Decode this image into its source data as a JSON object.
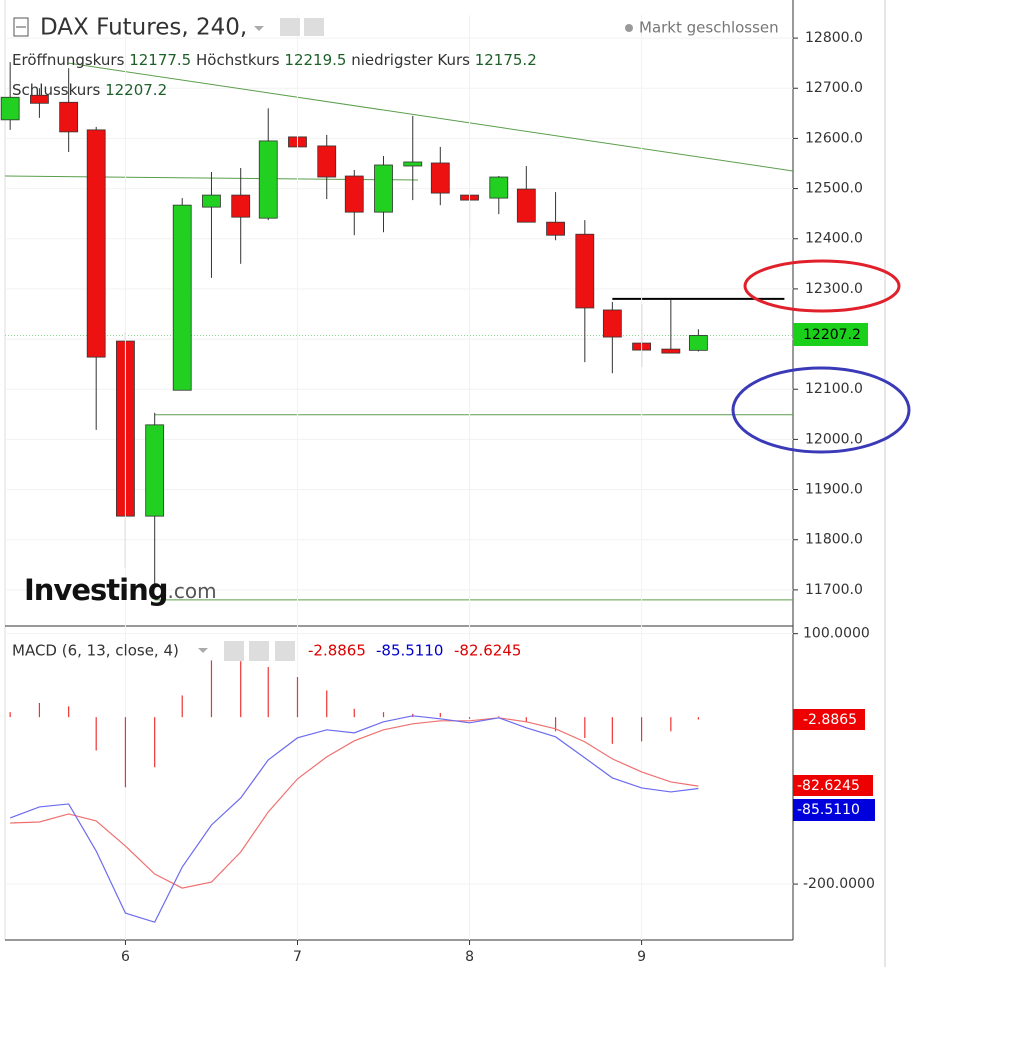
{
  "chart_data": [
    {
      "type": "candlestick",
      "title": "DAX Futures, 240,",
      "status": "Markt geschlossen",
      "ohlc_labels": {
        "open": "Eröffnungskurs",
        "high": "Höchstkurs",
        "low": "niedrigster Kurs",
        "close": "Schlusskurs"
      },
      "logo": [
        "Investing",
        ".com"
      ],
      "x": [
        5.33,
        5.5,
        5.67,
        5.83,
        6,
        6.17,
        6.33,
        6.5,
        6.67,
        6.83,
        7,
        7.17,
        7.33,
        7.5,
        7.67,
        7.83,
        8,
        8.17,
        8.33,
        8.5,
        8.67,
        8.83,
        9,
        9.17,
        9.33
      ],
      "open": [
        12637,
        12686,
        12672,
        12617,
        12196,
        11847,
        12098,
        12463,
        12487,
        12441,
        12603,
        12585,
        12525,
        12453,
        12545,
        12551,
        12487,
        12481,
        12499,
        12433,
        12409,
        12258,
        12192,
        12180,
        12177.5
      ],
      "high": [
        12752,
        12700,
        12740,
        12623,
        12214,
        12053,
        12481,
        12533,
        12541,
        12660,
        12660,
        12607,
        12537,
        12565,
        12645,
        12583,
        12497,
        12525,
        12545,
        12493,
        12437,
        12274,
        12270,
        12278,
        12219.5
      ],
      "low": [
        12617,
        12641,
        12573,
        12019,
        11744,
        11710,
        12098,
        12322,
        12350,
        12437,
        12583,
        12479,
        12407,
        12413,
        12477,
        12467,
        12383,
        12449,
        12433,
        12397,
        12154,
        12132,
        12144,
        12172,
        12175.2
      ],
      "close": [
        12682,
        12670,
        12613,
        12164,
        11847,
        12029,
        12467,
        12487,
        12443,
        12595,
        12583,
        12523,
        12453,
        12547,
        12553,
        12491,
        12477,
        12523,
        12433,
        12407,
        12262,
        12204,
        12178,
        12172,
        12207.2
      ],
      "up_color": "#22d022",
      "down_color": "#ee1111",
      "xlim": [
        5.3,
        9.88
      ],
      "ylim": [
        11630,
        12846
      ],
      "yticks": [
        {
          "value": 11700,
          "label": "11700.0"
        },
        {
          "value": 11800,
          "label": "11800.0"
        },
        {
          "value": 11900,
          "label": "11900.0"
        },
        {
          "value": 12000,
          "label": "12000.0"
        },
        {
          "value": 12100,
          "label": "12100.0"
        },
        {
          "value": 12200,
          "label": "12200.0"
        },
        {
          "value": 12300,
          "label": "12300.0"
        },
        {
          "value": 12400,
          "label": "12400.0"
        },
        {
          "value": 12500,
          "label": "12500.0"
        },
        {
          "value": 12600,
          "label": "12600.0"
        },
        {
          "value": 12700,
          "label": "12700.0"
        },
        {
          "value": 12800,
          "label": "12800.0"
        }
      ],
      "grid": true,
      "drawings": [
        {
          "x": [
            5.67,
            9.88
          ],
          "y": [
            12750,
            12535
          ],
          "color": "#5a9e4b"
        },
        {
          "x": [
            5.3,
            7.7
          ],
          "y": [
            12525,
            12517
          ],
          "color": "#5a9e4b"
        },
        {
          "x": [
            6.17,
            9.88
          ],
          "y": [
            12049,
            12049
          ],
          "color": "#5a9e4b"
        },
        {
          "x": [
            6.17,
            9.88
          ],
          "y": [
            11680,
            11680
          ],
          "color": "#5a9e4b"
        },
        {
          "x": [
            8.83,
            9.83
          ],
          "y": [
            12280,
            12280
          ],
          "color": "#000000"
        }
      ]
    },
    {
      "type": "macd",
      "title": "MACD (6, 13, close, 4)",
      "x": [
        5.33,
        5.5,
        5.67,
        5.83,
        6,
        6.17,
        6.33,
        6.5,
        6.67,
        6.83,
        7,
        7.17,
        7.33,
        7.5,
        7.67,
        7.83,
        8,
        8.17,
        8.33,
        8.5,
        8.67,
        8.83,
        9,
        9.17,
        9.33
      ],
      "histogram": {
        "color": "#ee3333",
        "values": [
          6,
          17,
          13,
          -40,
          -84,
          -60,
          26,
          68,
          67,
          60,
          48,
          32,
          10,
          6,
          4,
          5,
          -2,
          1,
          -6,
          -17,
          -25,
          -32,
          -29,
          -17,
          -2.8865
        ]
      },
      "macd": {
        "color": "#6b6bf0",
        "values": [
          -120.8,
          -107.6,
          -104,
          -160.4,
          -234.8,
          -245.6,
          -179.6,
          -129.2,
          -96.8,
          -51.2,
          -24.8,
          -15.2,
          -18.8,
          -5.6,
          1.6,
          -2,
          -6.8,
          -0.8,
          -12.8,
          -23.6,
          -48.8,
          -72.8,
          -84.8,
          -89.6,
          -85.511
        ]
      },
      "signal": {
        "color": "#f07070",
        "values": [
          -126.8,
          -125.6,
          -116,
          -124.4,
          -154.4,
          -188,
          -204.8,
          -197.6,
          -161.6,
          -113.6,
          -74,
          -47.6,
          -28.4,
          -15.2,
          -8,
          -4.4,
          -4.4,
          -0.8,
          -5.6,
          -14,
          -29.6,
          -50,
          -65.6,
          -77.6,
          -82.6245
        ]
      },
      "readout_labels": [
        "-2.8865",
        "-85.5110",
        "-82.6245"
      ],
      "xlim": [
        5.3,
        9.88
      ],
      "ylim": [
        -267,
        108
      ],
      "yticks": [
        {
          "value": -200,
          "label": "-200.0000"
        },
        {
          "value": 100,
          "label": "100.0000"
        }
      ],
      "xticks": [
        6,
        7,
        8,
        9
      ],
      "grid": true
    }
  ]
}
